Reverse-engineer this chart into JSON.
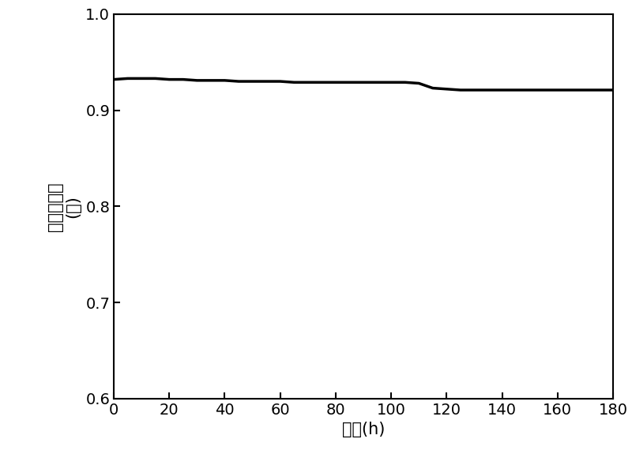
{
  "x": [
    0,
    5,
    10,
    15,
    20,
    25,
    30,
    35,
    40,
    45,
    50,
    55,
    60,
    65,
    70,
    75,
    80,
    85,
    90,
    95,
    100,
    105,
    110,
    115,
    120,
    125,
    130,
    135,
    140,
    145,
    150,
    155,
    160,
    165,
    170,
    175,
    180
  ],
  "y": [
    0.932,
    0.933,
    0.933,
    0.933,
    0.932,
    0.932,
    0.931,
    0.931,
    0.931,
    0.93,
    0.93,
    0.93,
    0.93,
    0.929,
    0.929,
    0.929,
    0.929,
    0.929,
    0.929,
    0.929,
    0.929,
    0.929,
    0.928,
    0.923,
    0.922,
    0.921,
    0.921,
    0.921,
    0.921,
    0.921,
    0.921,
    0.921,
    0.921,
    0.921,
    0.921,
    0.921,
    0.921
  ],
  "xlim": [
    0,
    180
  ],
  "ylim": [
    0.6,
    1.0
  ],
  "xticks": [
    0,
    20,
    40,
    60,
    80,
    100,
    120,
    140,
    160,
    180
  ],
  "yticks": [
    0.6,
    0.7,
    0.8,
    0.9,
    1.0
  ],
  "xlabel_chinese": "时间",
  "xlabel_bold": "(h)",
  "ylabel_top": "甲烷转化率",
  "ylabel_bottom": "(％)",
  "line_color": "#000000",
  "line_width": 2.5,
  "background_color": "#ffffff",
  "tick_label_fontsize": 14,
  "ylabel_fontsize": 15,
  "xlabel_fontsize": 15
}
